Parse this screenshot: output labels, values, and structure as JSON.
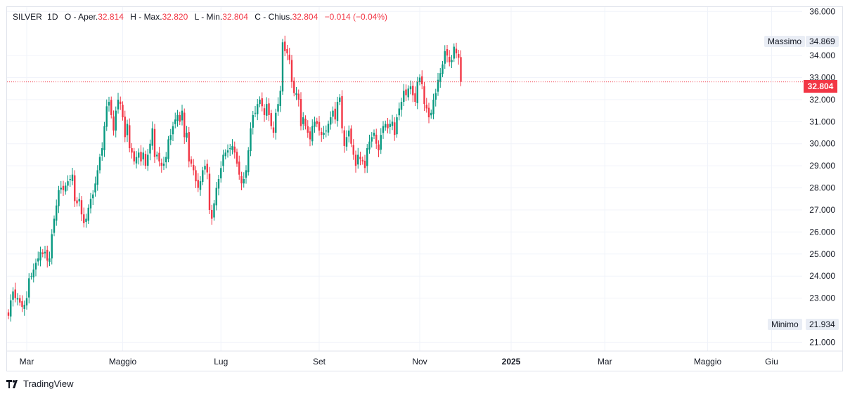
{
  "legend": {
    "symbol": "SILVER",
    "interval": "1D",
    "open_label": "O - Aper.",
    "open": "32.814",
    "high_label": "H - Max.",
    "high": "32.820",
    "low_label": "L - Min.",
    "low": "32.804",
    "close_label": "C - Chius.",
    "close": "32.804",
    "change": "−0.014 (−0.04%)"
  },
  "tags": {
    "max_label": "Massimo",
    "max_value": "34.869",
    "min_label": "Minimo",
    "min_value": "21.934",
    "last_price": "32.804"
  },
  "footer": {
    "brand": "TradingView"
  },
  "colors": {
    "up": "#089981",
    "down": "#f23645",
    "grid": "#f0f3fa",
    "text": "#131722"
  },
  "chart_data": {
    "type": "candlestick",
    "y_ticks": [
      "21.000",
      "23.000",
      "24.000",
      "25.000",
      "26.000",
      "27.000",
      "28.000",
      "29.000",
      "30.000",
      "31.000",
      "32.000",
      "33.000",
      "34.000",
      "36.000"
    ],
    "x_ticks": [
      {
        "label": "Mar",
        "idx": 8
      },
      {
        "label": "Maggio",
        "idx": 50
      },
      {
        "label": "Lug",
        "idx": 93
      },
      {
        "label": "Set",
        "idx": 136
      },
      {
        "label": "Nov",
        "idx": 180
      },
      {
        "label": "2025",
        "idx": 220
      },
      {
        "label": "Mar",
        "idx": 261
      },
      {
        "label": "Maggio",
        "idx": 306
      },
      {
        "label": "Giu",
        "idx": 334
      }
    ],
    "ylim": [
      20.6,
      36.2
    ],
    "last_price": 32.804,
    "closes": [
      22.2,
      22.9,
      23.3,
      23.0,
      23.0,
      22.8,
      22.6,
      22.7,
      23.0,
      23.9,
      24.0,
      24.3,
      24.6,
      24.8,
      25.1,
      25.0,
      25.1,
      24.7,
      24.8,
      25.9,
      26.6,
      27.2,
      27.9,
      28.0,
      27.9,
      28.1,
      28.3,
      28.4,
      28.6,
      27.4,
      27.3,
      27.5,
      26.8,
      26.4,
      26.6,
      27.1,
      27.5,
      27.7,
      28.2,
      28.8,
      29.4,
      29.8,
      30.8,
      31.7,
      31.9,
      31.3,
      30.6,
      31.5,
      32.0,
      31.8,
      31.2,
      30.3,
      30.9,
      29.8,
      29.6,
      29.2,
      29.4,
      29.6,
      29.2,
      29.6,
      29.0,
      29.5,
      30.0,
      30.7,
      29.4,
      29.5,
      29.2,
      29.0,
      29.1,
      29.4,
      30.2,
      30.4,
      30.8,
      31.1,
      31.3,
      31.0,
      31.5,
      30.3,
      30.5,
      29.2,
      29.1,
      28.8,
      28.3,
      28.0,
      28.3,
      28.8,
      29.0,
      28.7,
      27.0,
      26.6,
      27.3,
      28.0,
      28.4,
      28.9,
      29.5,
      29.6,
      29.7,
      29.8,
      29.9,
      29.6,
      29.1,
      28.6,
      28.2,
      28.4,
      28.8,
      29.7,
      30.7,
      31.3,
      31.4,
      31.8,
      32.0,
      31.7,
      31.3,
      31.8,
      31.3,
      30.8,
      30.5,
      31.4,
      31.8,
      32.4,
      34.6,
      34.2,
      34.1,
      33.8,
      32.8,
      32.3,
      32.3,
      32.0,
      30.8,
      31.2,
      30.8,
      30.5,
      30.2,
      30.8,
      31.0,
      30.9,
      30.6,
      30.4,
      30.5,
      30.6,
      30.9,
      31.2,
      31.5,
      31.1,
      31.9,
      32.1,
      30.7,
      29.9,
      30.3,
      30.6,
      30.0,
      29.5,
      29.0,
      29.5,
      29.3,
      29.2,
      28.9,
      29.8,
      30.1,
      30.3,
      30.5,
      30.0,
      29.7,
      30.4,
      30.8,
      30.9,
      30.7,
      30.9,
      31.0,
      30.4,
      31.2,
      31.6,
      31.9,
      32.4,
      32.2,
      32.5,
      32.6,
      32.2,
      31.9,
      32.8,
      33.0,
      32.7,
      31.8,
      31.6,
      31.2,
      31.4,
      32.0,
      32.3,
      32.9,
      33.2,
      33.6,
      34.2,
      34.0,
      33.7,
      33.8,
      34.4,
      34.1,
      33.9,
      32.8
    ]
  }
}
